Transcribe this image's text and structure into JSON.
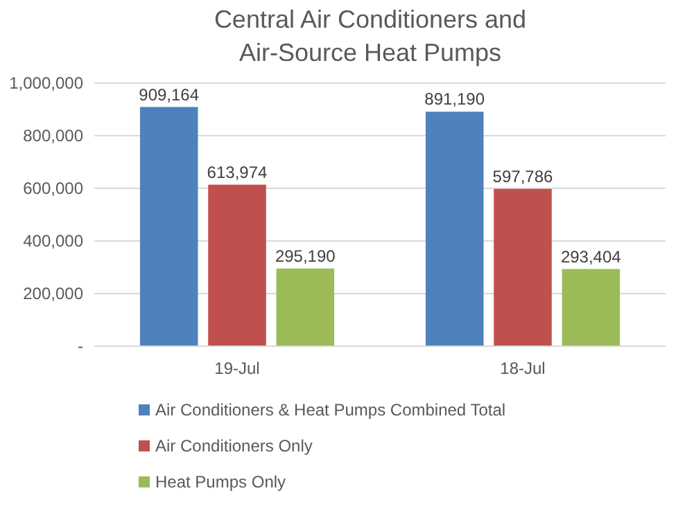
{
  "chart_data": {
    "type": "bar",
    "title": "Central Air Conditioners and Air-Source Heat Pumps",
    "categories": [
      "19-Jul",
      "18-Jul"
    ],
    "series": [
      {
        "name": "Air Conditioners & Heat Pumps Combined Total",
        "color": "#4f81bd",
        "values": [
          909164,
          891190
        ],
        "value_labels": [
          "909,164",
          "891,190"
        ]
      },
      {
        "name": "Air Conditioners Only",
        "color": "#c0504d",
        "values": [
          613974,
          597786
        ],
        "value_labels": [
          "613,974",
          "597,786"
        ]
      },
      {
        "name": "Heat Pumps Only",
        "color": "#9bbb59",
        "values": [
          295190,
          293404
        ],
        "value_labels": [
          "295,190",
          "293,404"
        ]
      }
    ],
    "ylim": [
      0,
      1000000
    ],
    "yticks": [
      {
        "value": 0,
        "label": "-"
      },
      {
        "value": 200000,
        "label": "200,000"
      },
      {
        "value": 400000,
        "label": "400,000"
      },
      {
        "value": 600000,
        "label": "600,000"
      },
      {
        "value": 800000,
        "label": "800,000"
      },
      {
        "value": 1000000,
        "label": "1,000,000"
      }
    ],
    "grid": "y",
    "legend": "bottom"
  }
}
